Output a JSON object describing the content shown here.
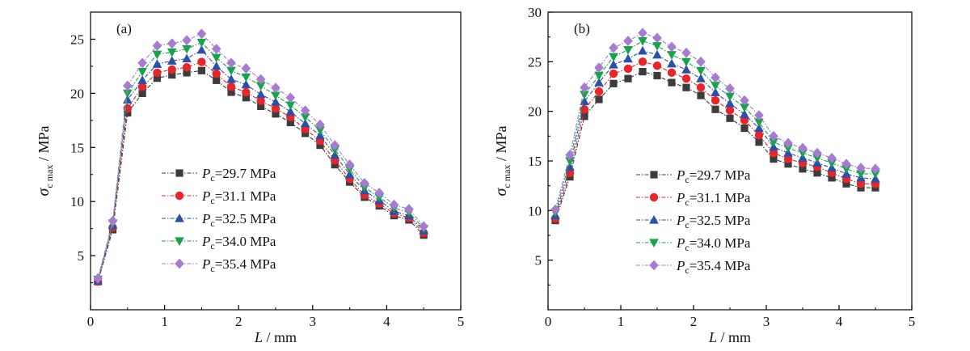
{
  "chart_data": [
    {
      "type": "line",
      "panel_label": "(a)",
      "xlabel_var": "L",
      "xlabel_unit": " / mm",
      "ylabel_sym": "σ",
      "ylabel_sub": "c max",
      "ylabel_unit": " / MPa",
      "xlim": [
        0,
        5
      ],
      "ylim": [
        0,
        27.5
      ],
      "xticks": [
        0,
        1,
        2,
        3,
        4,
        5
      ],
      "yticks": [
        5,
        10,
        15,
        20,
        25
      ],
      "x": [
        0.1,
        0.3,
        0.5,
        0.7,
        0.9,
        1.1,
        1.3,
        1.5,
        1.7,
        1.9,
        2.1,
        2.3,
        2.5,
        2.7,
        2.9,
        3.1,
        3.3,
        3.5,
        3.7,
        3.9,
        4.1,
        4.3,
        4.5
      ],
      "series": [
        {
          "name": "=29.7 MPa",
          "values": [
            2.6,
            7.4,
            18.2,
            20.0,
            21.4,
            21.7,
            21.9,
            22.1,
            21.2,
            20.1,
            19.6,
            18.8,
            18.1,
            17.3,
            16.3,
            15.2,
            13.4,
            11.8,
            10.4,
            9.6,
            8.7,
            8.3,
            6.9
          ]
        },
        {
          "name": "=31.1 MPa",
          "values": [
            2.6,
            7.6,
            18.6,
            20.6,
            21.9,
            22.2,
            22.4,
            22.9,
            21.8,
            20.6,
            20.1,
            19.3,
            18.6,
            17.8,
            16.7,
            15.6,
            13.8,
            12.1,
            10.6,
            9.8,
            8.9,
            8.5,
            7.1
          ]
        },
        {
          "name": "=32.5 MPa",
          "values": [
            2.7,
            7.8,
            19.4,
            21.2,
            22.7,
            23.0,
            23.2,
            24.0,
            22.5,
            21.3,
            20.8,
            19.9,
            19.2,
            18.3,
            17.2,
            16.1,
            14.3,
            12.5,
            11.0,
            10.1,
            9.1,
            8.7,
            7.3
          ]
        },
        {
          "name": "=34.0 MPa",
          "values": [
            2.8,
            8.0,
            20.0,
            22.0,
            23.6,
            23.8,
            24.1,
            24.7,
            23.3,
            22.1,
            21.5,
            20.7,
            19.8,
            18.9,
            17.8,
            16.6,
            14.8,
            13.0,
            11.3,
            10.4,
            9.4,
            9.0,
            7.5
          ]
        },
        {
          "name": "=35.4 MPa",
          "values": [
            2.9,
            8.2,
            20.7,
            22.8,
            24.4,
            24.6,
            24.9,
            25.5,
            24.1,
            22.8,
            22.3,
            21.3,
            20.5,
            19.6,
            18.4,
            17.1,
            15.2,
            13.4,
            11.7,
            10.8,
            9.7,
            9.3,
            7.7
          ]
        }
      ]
    },
    {
      "type": "line",
      "panel_label": "(b)",
      "xlabel_var": "L",
      "xlabel_unit": " / mm",
      "ylabel_sym": "σ",
      "ylabel_sub": "c max",
      "ylabel_unit": " / MPa",
      "xlim": [
        0,
        5
      ],
      "ylim": [
        0,
        30
      ],
      "xticks": [
        0,
        1,
        2,
        3,
        4,
        5
      ],
      "yticks": [
        5,
        10,
        15,
        20,
        25,
        30
      ],
      "x": [
        0.1,
        0.3,
        0.5,
        0.7,
        0.9,
        1.1,
        1.3,
        1.5,
        1.7,
        1.9,
        2.1,
        2.3,
        2.5,
        2.7,
        2.9,
        3.1,
        3.3,
        3.5,
        3.7,
        3.9,
        4.1,
        4.3,
        4.5
      ],
      "series": [
        {
          "name": "=29.7 MPa",
          "values": [
            9.0,
            13.4,
            19.5,
            21.2,
            22.8,
            23.3,
            24.0,
            23.6,
            22.9,
            22.4,
            21.6,
            20.2,
            19.3,
            18.3,
            16.9,
            15.2,
            14.7,
            14.2,
            13.8,
            13.3,
            12.7,
            12.3,
            12.3
          ]
        },
        {
          "name": "=31.1 MPa",
          "values": [
            9.2,
            13.8,
            20.2,
            22.0,
            23.8,
            24.3,
            25.0,
            24.6,
            23.9,
            23.3,
            22.4,
            21.1,
            20.1,
            19.1,
            17.6,
            15.8,
            15.2,
            14.8,
            14.4,
            13.8,
            13.2,
            12.7,
            12.7
          ]
        },
        {
          "name": "=32.5 MPa",
          "values": [
            9.5,
            14.4,
            21.0,
            22.9,
            24.7,
            25.3,
            26.1,
            25.7,
            24.8,
            24.2,
            23.3,
            21.9,
            20.8,
            19.7,
            18.3,
            16.4,
            15.8,
            15.3,
            14.8,
            14.3,
            13.7,
            13.3,
            13.2
          ]
        },
        {
          "name": "=34.0 MPa",
          "values": [
            9.8,
            15.0,
            21.7,
            23.6,
            25.5,
            26.2,
            27.1,
            26.6,
            25.7,
            25.0,
            24.1,
            22.6,
            21.5,
            20.4,
            18.9,
            16.9,
            16.3,
            15.8,
            15.3,
            14.8,
            14.2,
            13.7,
            13.7
          ]
        },
        {
          "name": "=35.4 MPa",
          "values": [
            10.1,
            15.6,
            22.4,
            24.4,
            26.4,
            27.1,
            27.9,
            27.4,
            26.5,
            25.9,
            25.0,
            23.4,
            22.3,
            21.1,
            19.6,
            17.5,
            16.8,
            16.3,
            15.8,
            15.3,
            14.7,
            14.3,
            14.2
          ]
        }
      ]
    }
  ],
  "legend_var": "P",
  "legend_sub": "c",
  "colors": [
    "#3c3c3c",
    "#e8262a",
    "#2c4fa8",
    "#17a34a",
    "#a77bd0"
  ],
  "markers": [
    "square",
    "circle",
    "triangle-up",
    "triangle-down",
    "diamond"
  ]
}
